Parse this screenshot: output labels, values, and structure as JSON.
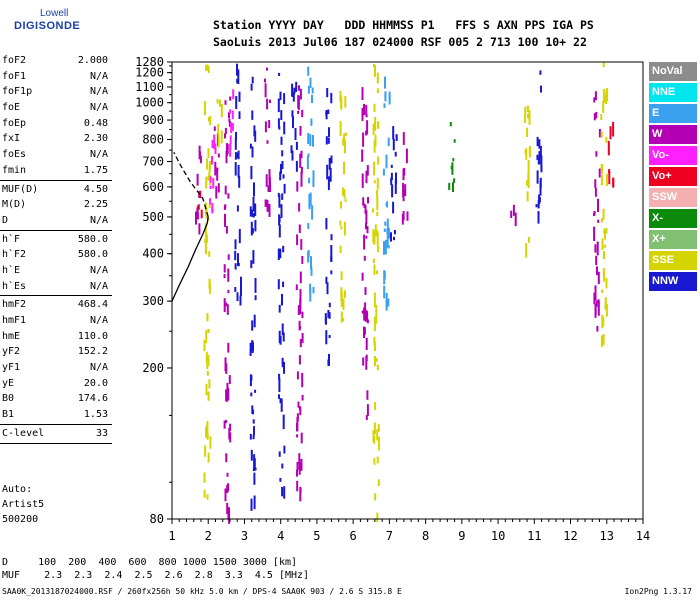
{
  "logo": {
    "line1": "Lowell",
    "line2": "DIGISONDE"
  },
  "header": {
    "labels": "Station YYYY DAY   DDD HHMMSS P1   FFS S AXN PPS IGA PS",
    "values": "SaoLuis 2013 Jul06 187 024000 RSF 005 2 713 100 10+ 22"
  },
  "params": [
    [
      {
        "label": "foF2",
        "value": "2.000"
      },
      {
        "label": "foF1",
        "value": "N/A"
      },
      {
        "label": "foF1p",
        "value": "N/A"
      },
      {
        "label": "foE",
        "value": "N/A"
      },
      {
        "label": "foEp",
        "value": "0.48"
      },
      {
        "label": "fxI",
        "value": "2.30"
      },
      {
        "label": "foEs",
        "value": "N/A"
      },
      {
        "label": "fmin",
        "value": "1.75"
      }
    ],
    [
      {
        "label": "MUF(D)",
        "value": "4.50"
      },
      {
        "label": "M(D)",
        "value": "2.25"
      },
      {
        "label": "D",
        "value": "N/A"
      }
    ],
    [
      {
        "label": "h`F",
        "value": "580.0"
      },
      {
        "label": "h`F2",
        "value": "580.0"
      },
      {
        "label": "h`E",
        "value": "N/A"
      },
      {
        "label": "h`Es",
        "value": "N/A"
      }
    ],
    [
      {
        "label": "hmF2",
        "value": "468.4"
      },
      {
        "label": "hmF1",
        "value": "N/A"
      },
      {
        "label": "hmE",
        "value": "110.0"
      },
      {
        "label": "yF2",
        "value": "152.2"
      },
      {
        "label": "yF1",
        "value": "N/A"
      },
      {
        "label": "yE",
        "value": "20.0"
      },
      {
        "label": "B0",
        "value": "174.6"
      },
      {
        "label": "B1",
        "value": "1.53"
      }
    ],
    [
      {
        "label": "C-level",
        "value": "33"
      }
    ]
  ],
  "autoscale": {
    "line1": "Auto:",
    "line2": "Artist5",
    "line3": "500200"
  },
  "bottom": {
    "d_row": "D     100  200  400  600  800 1000 1500 3000 [km]",
    "muf_row": "MUF    2.3  2.3  2.4  2.5  2.6  2.8  3.3  4.5 [MHz]"
  },
  "footer": {
    "left": "SAA0K_2013187024000.RSF / 260fx256h 50 kHz 5.0 km / DPS-4 SAA0K 903 / 2.6 S 315.8 E",
    "right": "Ion2Png 1.3.17"
  },
  "legend": [
    {
      "label": "NoVal",
      "color": "#8c8c8c"
    },
    {
      "label": "NNE",
      "color": "#00e5ee"
    },
    {
      "label": "E",
      "color": "#3aa0f0"
    },
    {
      "label": "W",
      "color": "#b400b4"
    },
    {
      "label": "Vo-",
      "color": "#ff20ff"
    },
    {
      "label": "Vo+",
      "color": "#ee0020"
    },
    {
      "label": "SSW",
      "color": "#f4b0b0"
    },
    {
      "label": "X-",
      "color": "#0c8a0c"
    },
    {
      "label": "X+",
      "color": "#80c070"
    },
    {
      "label": "SSE",
      "color": "#d4d400"
    },
    {
      "label": "NNW",
      "color": "#1818d0"
    }
  ],
  "chart_data": {
    "type": "scatter",
    "title": "",
    "xlabel": "",
    "ylabel": "",
    "xlim": [
      1,
      14
    ],
    "ylim": [
      80,
      1280
    ],
    "x_ticks": [
      "1",
      "2",
      "3",
      "4",
      "5",
      "6",
      "7",
      "8",
      "9",
      "10",
      "11",
      "12",
      "13",
      "14"
    ],
    "y_ticks": [
      "80",
      "200",
      "300",
      "400",
      "500",
      "600",
      "700",
      "800",
      "900",
      "1000",
      "1100",
      "1200",
      "1280"
    ],
    "y_scale": "log",
    "grid": false,
    "profile_solid": [
      [
        1.0,
        300
      ],
      [
        1.2,
        330
      ],
      [
        1.45,
        370
      ],
      [
        1.65,
        410
      ],
      [
        1.85,
        450
      ],
      [
        1.97,
        480
      ],
      [
        2.0,
        500
      ]
    ],
    "profile_dashed": [
      [
        2.0,
        500
      ],
      [
        1.85,
        560
      ],
      [
        1.5,
        620
      ],
      [
        1.25,
        680
      ],
      [
        1.05,
        740
      ]
    ],
    "echo_columns": [
      {
        "f": 1.7,
        "lo": 480,
        "hi": 850,
        "color": "#b400b4"
      },
      {
        "f": 1.75,
        "lo": 520,
        "hi": 620,
        "color": "#ee0020"
      },
      {
        "f": 1.95,
        "lo": 82,
        "hi": 1280,
        "color": "#d4d400"
      },
      {
        "f": 2.1,
        "lo": 520,
        "hi": 1000,
        "color": "#ff20ff"
      },
      {
        "f": 2.2,
        "lo": 600,
        "hi": 950,
        "color": "#b400b4"
      },
      {
        "f": 2.3,
        "lo": 800,
        "hi": 1100,
        "color": "#d4d400"
      },
      {
        "f": 2.5,
        "lo": 82,
        "hi": 1050,
        "color": "#b400b4"
      },
      {
        "f": 2.6,
        "lo": 700,
        "hi": 1100,
        "color": "#ff20ff"
      },
      {
        "f": 2.8,
        "lo": 300,
        "hi": 1280,
        "color": "#1818d0"
      },
      {
        "f": 3.2,
        "lo": 90,
        "hi": 1200,
        "color": "#1818d0"
      },
      {
        "f": 3.6,
        "lo": 500,
        "hi": 1250,
        "color": "#b400b4"
      },
      {
        "f": 4.0,
        "lo": 82,
        "hi": 1200,
        "color": "#1818d0"
      },
      {
        "f": 4.35,
        "lo": 600,
        "hi": 1150,
        "color": "#1818d0"
      },
      {
        "f": 4.5,
        "lo": 90,
        "hi": 1280,
        "color": "#b400b4"
      },
      {
        "f": 4.8,
        "lo": 300,
        "hi": 1250,
        "color": "#3aa0f0"
      },
      {
        "f": 5.3,
        "lo": 200,
        "hi": 1100,
        "color": "#1818d0"
      },
      {
        "f": 5.7,
        "lo": 250,
        "hi": 1100,
        "color": "#d4d400"
      },
      {
        "f": 6.3,
        "lo": 150,
        "hi": 1250,
        "color": "#b400b4"
      },
      {
        "f": 6.6,
        "lo": 82,
        "hi": 1280,
        "color": "#d4d400"
      },
      {
        "f": 6.9,
        "lo": 300,
        "hi": 1280,
        "color": "#3aa0f0"
      },
      {
        "f": 7.1,
        "lo": 400,
        "hi": 900,
        "color": "#1818d0"
      },
      {
        "f": 7.4,
        "lo": 500,
        "hi": 900,
        "color": "#b400b4"
      },
      {
        "f": 8.7,
        "lo": 600,
        "hi": 950,
        "color": "#0c8a0c"
      },
      {
        "f": 10.4,
        "lo": 480,
        "hi": 560,
        "color": "#b400b4"
      },
      {
        "f": 10.8,
        "lo": 400,
        "hi": 1000,
        "color": "#d4d400"
      },
      {
        "f": 11.1,
        "lo": 470,
        "hi": 1280,
        "color": "#1818d0"
      },
      {
        "f": 12.7,
        "lo": 250,
        "hi": 1100,
        "color": "#b400b4"
      },
      {
        "f": 12.9,
        "lo": 200,
        "hi": 1280,
        "color": "#d4d400"
      },
      {
        "f": 13.1,
        "lo": 600,
        "hi": 900,
        "color": "#ee0020"
      }
    ]
  }
}
